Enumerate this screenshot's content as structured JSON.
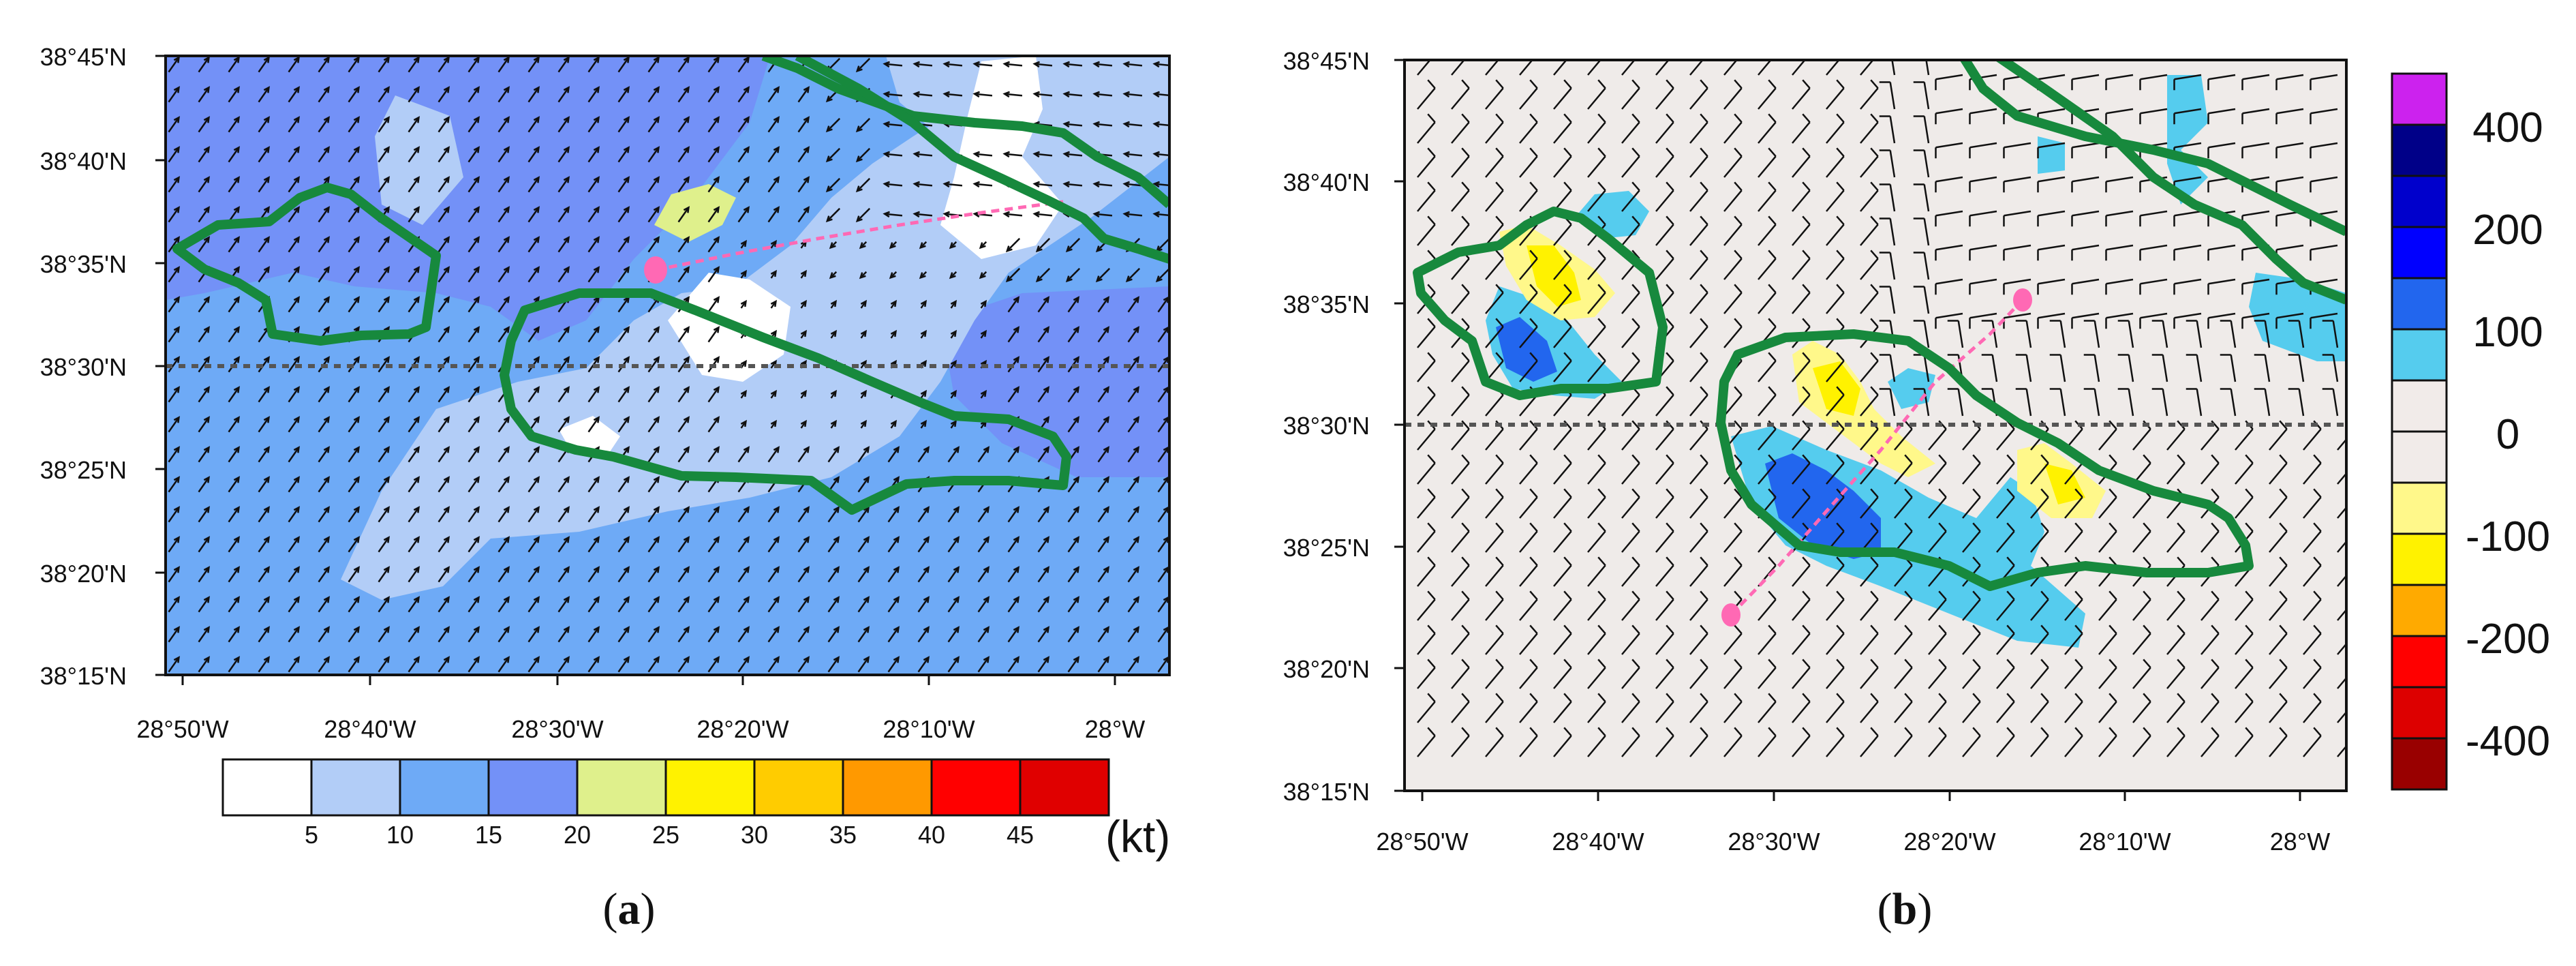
{
  "panel_a": {
    "label_open": "(",
    "label_letter": "a",
    "label_close": ")",
    "lat_ticks": [
      "38°45'N",
      "38°40'N",
      "38°35'N",
      "38°30'N",
      "38°25'N",
      "38°20'N",
      "38°15'N"
    ],
    "lon_ticks": [
      "28°50'W",
      "28°40'W",
      "28°30'W",
      "28°20'W",
      "28°10'W",
      "28°W"
    ],
    "colorbar": {
      "labels": [
        "5",
        "10",
        "15",
        "20",
        "25",
        "30",
        "35",
        "40",
        "45"
      ],
      "colors": [
        "#ffffff",
        "#b2cdf7",
        "#6eaaf6",
        "#7391f7",
        "#dff08c",
        "#fff200",
        "#ffcc00",
        "#ff9900",
        "#ff0000",
        "#e00000"
      ],
      "unit": "(kt)"
    }
  },
  "panel_b": {
    "label_open": "(",
    "label_letter": "b",
    "label_close": ")",
    "lat_ticks": [
      "38°45'N",
      "38°40'N",
      "38°35'N",
      "38°30'N",
      "38°25'N",
      "38°20'N",
      "38°15'N"
    ],
    "lon_ticks": [
      "28°50'W",
      "28°40'W",
      "28°30'W",
      "28°20'W",
      "28°10'W",
      "28°W"
    ],
    "colorbar": {
      "labels": [
        "400",
        "200",
        "100",
        "0",
        "-100",
        "-200",
        "-400"
      ],
      "colors": [
        "#cc22ee",
        "#000088",
        "#0000cc",
        "#0000ff",
        "#2266ee",
        "#55ccee",
        "#f1ebe9",
        "#f1ebe9",
        "#fff88a",
        "#fff200",
        "#ffaa00",
        "#ff0000",
        "#dd0000",
        "#990000"
      ]
    }
  },
  "colors": {
    "terrain": "#17893d",
    "track": "#ff69b4",
    "dashed": "#555555",
    "b_background": "#efebe9"
  }
}
